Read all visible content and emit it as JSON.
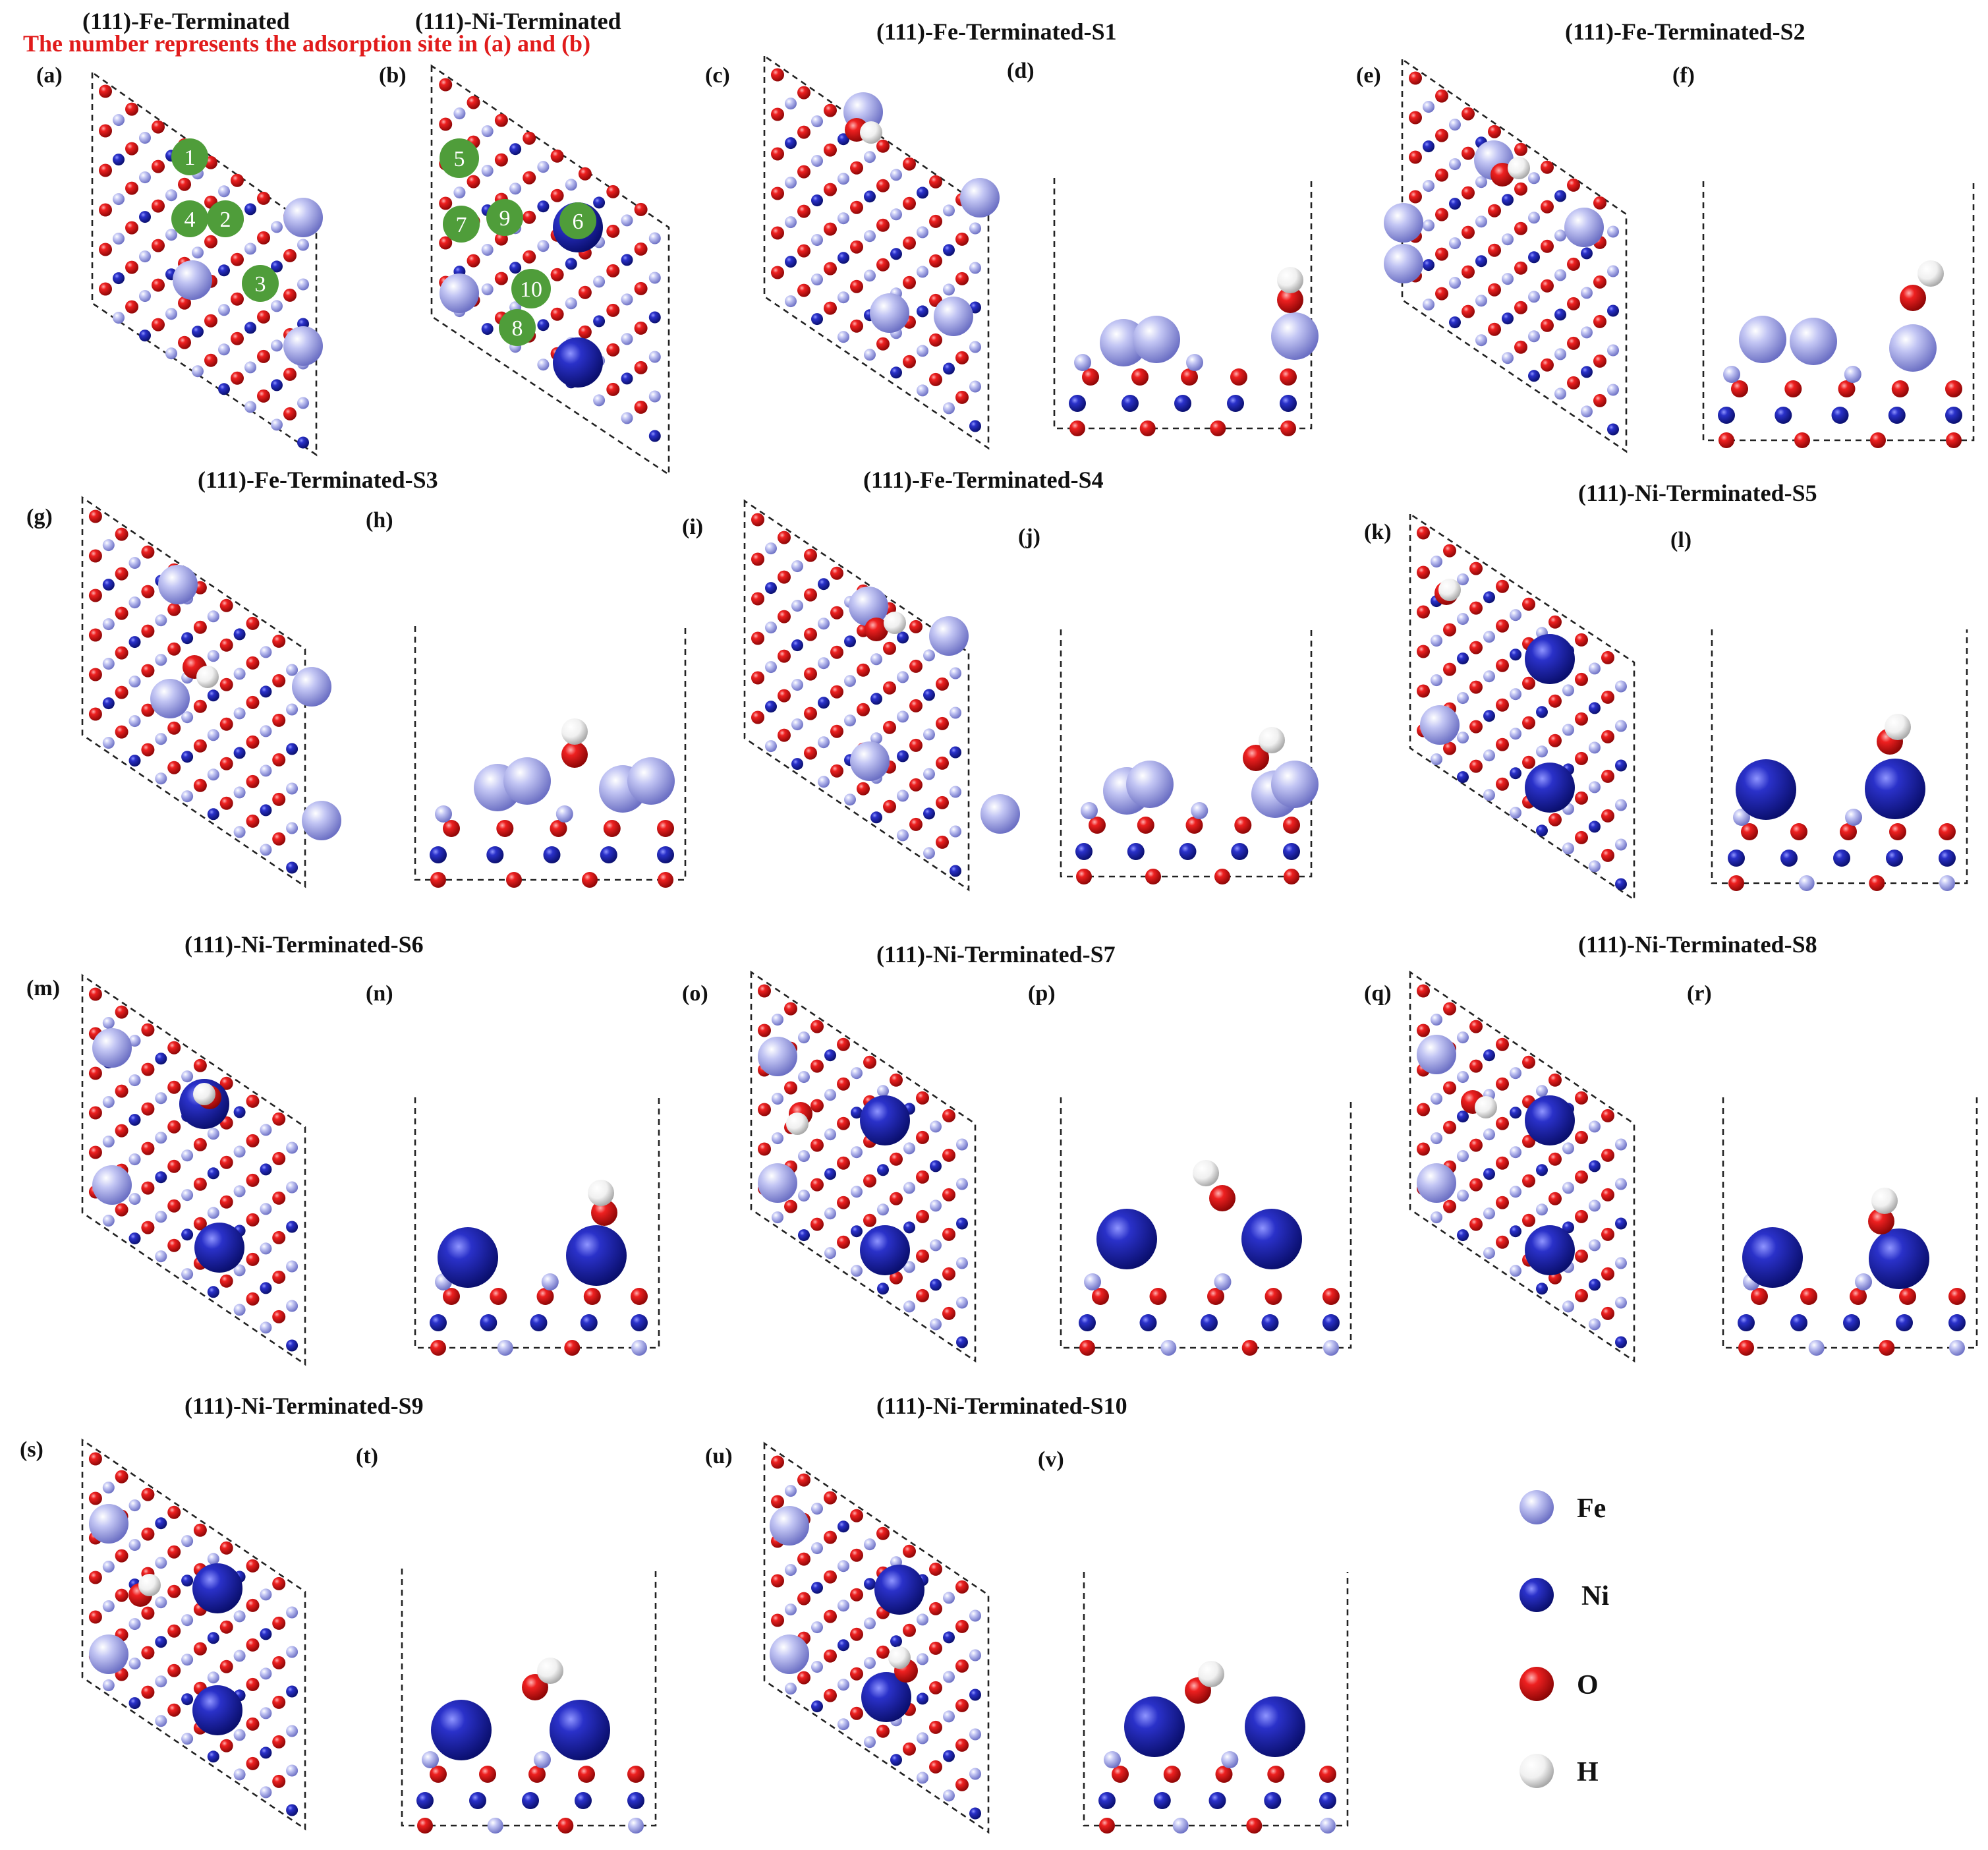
{
  "note": "The number represents the adsorption site in (a) and (b)",
  "colors": {
    "Fe": "#9fa3e8",
    "Ni": "#1b22a8",
    "O": "#e01818",
    "H": "#f2f2f2",
    "site": "#4f9d3a",
    "title": "#111111",
    "note": "#e11b1b"
  },
  "panels": [
    {
      "label": "(a)",
      "kind": "top",
      "title": "(111)-Fe-Terminated",
      "terminated": "Fe"
    },
    {
      "label": "(b)",
      "kind": "top",
      "title": "(111)-Ni-Terminated",
      "terminated": "Ni"
    },
    {
      "label": "(c)",
      "kind": "top",
      "title": "(111)-Fe-Terminated-S1",
      "terminated": "Fe"
    },
    {
      "label": "(d)",
      "kind": "side",
      "terminated": "Fe"
    },
    {
      "label": "(e)",
      "kind": "top",
      "title": "(111)-Fe-Terminated-S2",
      "terminated": "Fe"
    },
    {
      "label": "(f)",
      "kind": "side",
      "terminated": "Fe"
    },
    {
      "label": "(g)",
      "kind": "top",
      "title": "(111)-Fe-Terminated-S3",
      "terminated": "Fe"
    },
    {
      "label": "(h)",
      "kind": "side",
      "terminated": "Fe"
    },
    {
      "label": "(i)",
      "kind": "top",
      "title": "(111)-Fe-Terminated-S4",
      "terminated": "Fe"
    },
    {
      "label": "(j)",
      "kind": "side",
      "terminated": "Fe"
    },
    {
      "label": "(k)",
      "kind": "top",
      "title": "(111)-Ni-Terminated-S5",
      "terminated": "Ni"
    },
    {
      "label": "(l)",
      "kind": "side",
      "terminated": "Ni"
    },
    {
      "label": "(m)",
      "kind": "top",
      "title": "(111)-Ni-Terminated-S6",
      "terminated": "Ni"
    },
    {
      "label": "(n)",
      "kind": "side",
      "terminated": "Ni"
    },
    {
      "label": "(o)",
      "kind": "top",
      "title": "(111)-Ni-Terminated-S7",
      "terminated": "Ni"
    },
    {
      "label": "(p)",
      "kind": "side",
      "terminated": "Ni"
    },
    {
      "label": "(q)",
      "kind": "top",
      "title": "(111)-Ni-Terminated-S8",
      "terminated": "Ni"
    },
    {
      "label": "(r)",
      "kind": "side",
      "terminated": "Ni"
    },
    {
      "label": "(s)",
      "kind": "top",
      "title": "(111)-Ni-Terminated-S9",
      "terminated": "Ni"
    },
    {
      "label": "(t)",
      "kind": "side",
      "terminated": "Ni"
    },
    {
      "label": "(u)",
      "kind": "top",
      "title": "(111)-Ni-Terminated-S10",
      "terminated": "Ni"
    },
    {
      "label": "(v)",
      "kind": "side",
      "terminated": "Ni"
    }
  ],
  "site_numbers_a": [
    "1",
    "4",
    "2",
    "3"
  ],
  "site_numbers_b": [
    "5",
    "7",
    "9",
    "6",
    "10",
    "8"
  ],
  "legend": [
    {
      "element": "Fe",
      "label": "Fe"
    },
    {
      "element": "Ni",
      "label": "Ni"
    },
    {
      "element": "O",
      "label": "O"
    },
    {
      "element": "H",
      "label": "H"
    }
  ]
}
